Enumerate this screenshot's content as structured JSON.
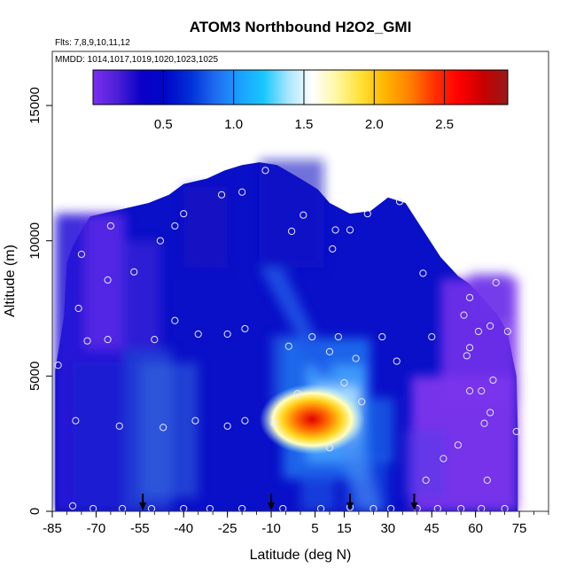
{
  "chart_data": {
    "type": "heatmap",
    "title": "ATOM3 Northbound H2O2_GMI",
    "annotations": [
      "Flts: 7,8,9,10,11,12",
      "MMDD: 1014,1017,1019,1020,1023,1025"
    ],
    "xlabel": "Latitude (deg N)",
    "ylabel": "Altitude (m)",
    "xlim": [
      -85,
      85
    ],
    "ylim": [
      0,
      17000
    ],
    "x_ticks": [
      "-85",
      "-70",
      "-55",
      "-40",
      "-25",
      "-10",
      "5",
      "15",
      "30",
      "45",
      "60",
      "75"
    ],
    "x_tick_values": [
      -85,
      -70,
      -55,
      -40,
      -25,
      -10,
      5,
      15,
      30,
      45,
      60,
      75
    ],
    "y_ticks": [
      "0",
      "5000",
      "10000",
      "15000"
    ],
    "y_tick_values": [
      0,
      5000,
      10000,
      15000
    ],
    "colorbar": {
      "range": [
        0,
        2.95
      ],
      "ticks": [
        "0.5",
        "1.0",
        "1.5",
        "2.0",
        "2.5"
      ],
      "tick_values": [
        0.5,
        1.0,
        1.5,
        2.0,
        2.5
      ],
      "colors": [
        "#7b2ff0",
        "#4a1fd6",
        "#0a00c8",
        "#0008c8",
        "#0030d8",
        "#1f6bf0",
        "#1aa0ff",
        "#19c7ff",
        "#a9e6ff",
        "#ffffff",
        "#fff7a0",
        "#ffe033",
        "#ffb300",
        "#ff8000",
        "#ff3000",
        "#ff0000",
        "#c80000",
        "#961a1a"
      ]
    },
    "profile_markers_lat": [
      -54,
      -10,
      17,
      39
    ],
    "samples": [
      [
        -83,
        5400
      ],
      [
        -77,
        3350
      ],
      [
        -76,
        7500
      ],
      [
        -75,
        9500
      ],
      [
        -73,
        6300
      ],
      [
        -66,
        8550
      ],
      [
        -66,
        6350
      ],
      [
        -65,
        10550
      ],
      [
        -62,
        3150
      ],
      [
        -57,
        8850
      ],
      [
        -50,
        6350
      ],
      [
        -48,
        10000
      ],
      [
        -47,
        3100
      ],
      [
        -43,
        7050
      ],
      [
        -43,
        10550
      ],
      [
        -40,
        11000
      ],
      [
        -36,
        3350
      ],
      [
        -35,
        6550
      ],
      [
        -27,
        11700
      ],
      [
        -25,
        6550
      ],
      [
        -25,
        3150
      ],
      [
        -20,
        11800
      ],
      [
        -19,
        6750
      ],
      [
        -19,
        3350
      ],
      [
        -12,
        12600
      ],
      [
        -9,
        3250
      ],
      [
        -4,
        6100
      ],
      [
        -3,
        10350
      ],
      [
        -1,
        4350
      ],
      [
        1,
        10950
      ],
      [
        4,
        6450
      ],
      [
        10,
        5900
      ],
      [
        10,
        2350
      ],
      [
        11,
        9700
      ],
      [
        12,
        10400
      ],
      [
        13,
        6450
      ],
      [
        15,
        4750
      ],
      [
        17,
        10400
      ],
      [
        19,
        5650
      ],
      [
        21,
        4050
      ],
      [
        23,
        11000
      ],
      [
        28,
        6450
      ],
      [
        33,
        5550
      ],
      [
        34,
        11450
      ],
      [
        42,
        8800
      ],
      [
        43,
        1150
      ],
      [
        45,
        6450
      ],
      [
        49,
        1950
      ],
      [
        54,
        2450
      ],
      [
        56,
        7250
      ],
      [
        57,
        5750
      ],
      [
        58,
        7900
      ],
      [
        58,
        6050
      ],
      [
        58,
        4450
      ],
      [
        61,
        6650
      ],
      [
        62,
        4450
      ],
      [
        63,
        3250
      ],
      [
        64,
        1150
      ],
      [
        65,
        6850
      ],
      [
        65,
        3650
      ],
      [
        66,
        4850
      ],
      [
        67,
        8450
      ],
      [
        71,
        6650
      ],
      [
        74,
        2950
      ],
      [
        -78,
        200
      ],
      [
        -71,
        100
      ],
      [
        -61,
        100
      ],
      [
        -51,
        100
      ],
      [
        -40,
        100
      ],
      [
        -31,
        100
      ],
      [
        -20,
        100
      ],
      [
        -6,
        100
      ],
      [
        7,
        100
      ],
      [
        17,
        150
      ],
      [
        25,
        100
      ],
      [
        31,
        100
      ],
      [
        40,
        100
      ],
      [
        47,
        100
      ],
      [
        55,
        100
      ],
      [
        62,
        100
      ],
      [
        70,
        100
      ]
    ]
  }
}
